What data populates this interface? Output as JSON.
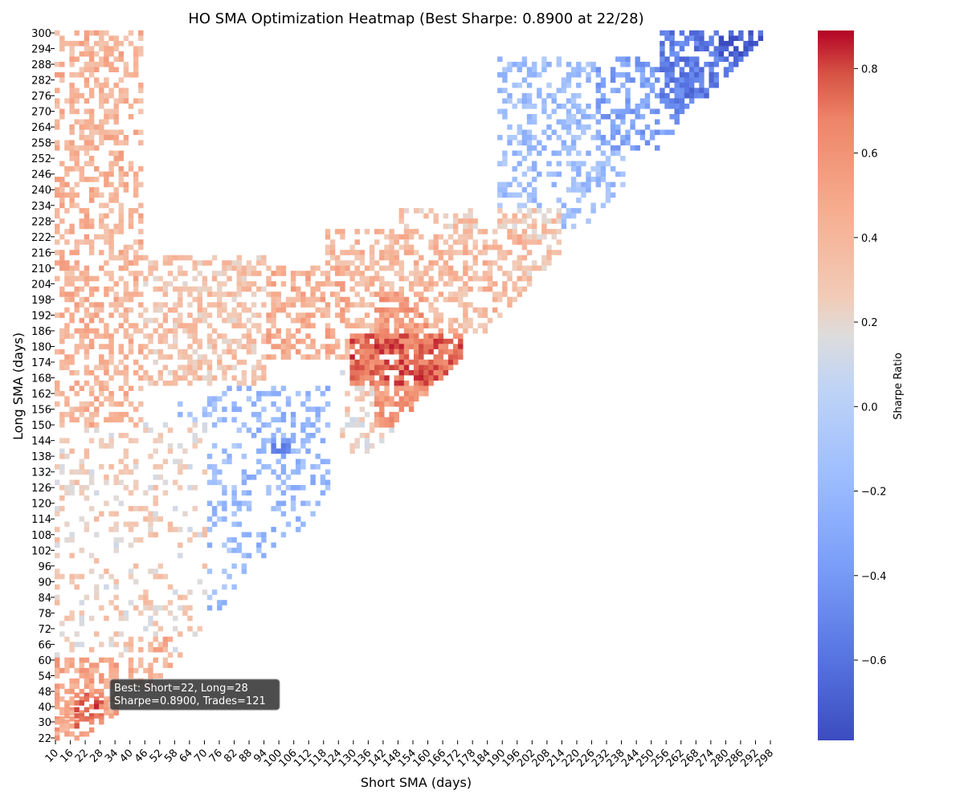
{
  "chart_data": {
    "type": "heatmap",
    "title": "HO SMA Optimization Heatmap (Best Sharpe: 0.8900 at 22/28)",
    "xlabel": "Short SMA (days)",
    "ylabel": "Long SMA (days)",
    "colorbar_label": "Sharpe Ratio",
    "colormap": "coolwarm",
    "x_range": [
      10,
      300
    ],
    "y_range": [
      22,
      300
    ],
    "x_ticks": [
      "10",
      "16",
      "22",
      "28",
      "34",
      "40",
      "46",
      "52",
      "58",
      "64",
      "70",
      "76",
      "82",
      "88",
      "94",
      "100",
      "106",
      "112",
      "118",
      "124",
      "130",
      "136",
      "142",
      "148",
      "154",
      "160",
      "166",
      "172",
      "178",
      "184",
      "190",
      "196",
      "202",
      "208",
      "214",
      "220",
      "226",
      "232",
      "238",
      "244",
      "250",
      "256",
      "262",
      "268",
      "274",
      "280",
      "286",
      "292",
      "298"
    ],
    "y_ticks": [
      "300",
      "294",
      "288",
      "282",
      "276",
      "270",
      "264",
      "258",
      "252",
      "246",
      "240",
      "234",
      "228",
      "222",
      "216",
      "210",
      "204",
      "198",
      "192",
      "186",
      "180",
      "174",
      "168",
      "162",
      "156",
      "150",
      "144",
      "138",
      "132",
      "126",
      "120",
      "114",
      "108",
      "102",
      "96",
      "90",
      "84",
      "78",
      "72",
      "66",
      "60",
      "54",
      "48",
      "40",
      "30",
      "22"
    ],
    "value_range": [
      -0.79,
      0.89
    ],
    "colorbar_ticks": [
      {
        "value": 0.8,
        "label": "0.8"
      },
      {
        "value": 0.6,
        "label": "0.6"
      },
      {
        "value": 0.4,
        "label": "0.4"
      },
      {
        "value": 0.2,
        "label": "0.2"
      },
      {
        "value": 0.0,
        "label": "0.0"
      },
      {
        "value": -0.2,
        "label": "−0.2"
      },
      {
        "value": -0.4,
        "label": "−0.4"
      },
      {
        "value": -0.6,
        "label": "−0.6"
      }
    ],
    "regions": [
      {
        "x": [
          130,
          175
        ],
        "y": [
          165,
          185
        ],
        "sharpe": 0.72,
        "density": 0.85
      },
      {
        "x": [
          140,
          160
        ],
        "y": [
          150,
          200
        ],
        "sharpe": 0.55,
        "density": 0.75
      },
      {
        "x": [
          95,
          130
        ],
        "y": [
          175,
          210
        ],
        "sharpe": 0.45,
        "density": 0.55
      },
      {
        "x": [
          120,
          200
        ],
        "y": [
          185,
          225
        ],
        "sharpe": 0.38,
        "density": 0.5
      },
      {
        "x": [
          150,
          180
        ],
        "y": [
          215,
          232
        ],
        "sharpe": 0.32,
        "density": 0.5
      },
      {
        "x": [
          190,
          215
        ],
        "y": [
          195,
          232
        ],
        "sharpe": 0.3,
        "density": 0.5
      },
      {
        "x": [
          10,
          45
        ],
        "y": [
          150,
          300
        ],
        "sharpe": 0.42,
        "density": 0.45
      },
      {
        "x": [
          10,
          95
        ],
        "y": [
          165,
          215
        ],
        "sharpe": 0.32,
        "density": 0.5
      },
      {
        "x": [
          55,
          90
        ],
        "y": [
          172,
          182
        ],
        "sharpe": 0.02,
        "density": 0.7
      },
      {
        "x": [
          10,
          70
        ],
        "y": [
          55,
          150
        ],
        "sharpe": 0.25,
        "density": 0.2
      },
      {
        "x": [
          10,
          35
        ],
        "y": [
          22,
          60
        ],
        "sharpe": 0.5,
        "density": 0.6
      },
      {
        "x": [
          18,
          28
        ],
        "y": [
          28,
          46
        ],
        "sharpe": 0.72,
        "density": 0.5
      },
      {
        "x": [
          40,
          56
        ],
        "y": [
          50,
          68
        ],
        "sharpe": 0.42,
        "density": 0.45
      },
      {
        "x": [
          60,
          90
        ],
        "y": [
          78,
          165
        ],
        "sharpe": -0.15,
        "density": 0.25
      },
      {
        "x": [
          85,
          120
        ],
        "y": [
          100,
          165
        ],
        "sharpe": -0.2,
        "density": 0.3
      },
      {
        "x": [
          98,
          104
        ],
        "y": [
          140,
          145
        ],
        "sharpe": -0.45,
        "density": 0.8
      },
      {
        "x": [
          125,
          150
        ],
        "y": [
          140,
          170
        ],
        "sharpe": 0.25,
        "density": 0.35
      },
      {
        "x": [
          190,
          240
        ],
        "y": [
          225,
          290
        ],
        "sharpe": -0.15,
        "density": 0.4
      },
      {
        "x": [
          230,
          270
        ],
        "y": [
          255,
          290
        ],
        "sharpe": -0.35,
        "density": 0.45
      },
      {
        "x": [
          255,
          300
        ],
        "y": [
          268,
          300
        ],
        "sharpe": -0.55,
        "density": 0.6
      },
      {
        "x": [
          280,
          300
        ],
        "y": [
          292,
          300
        ],
        "sharpe": -0.72,
        "density": 0.85
      }
    ],
    "best": {
      "short": 22,
      "long": 28,
      "sharpe": 0.89,
      "trades": 121
    }
  },
  "annotation": {
    "line1": "Best: Short=22, Long=28",
    "line2": "Sharpe=0.8900, Trades=121"
  }
}
